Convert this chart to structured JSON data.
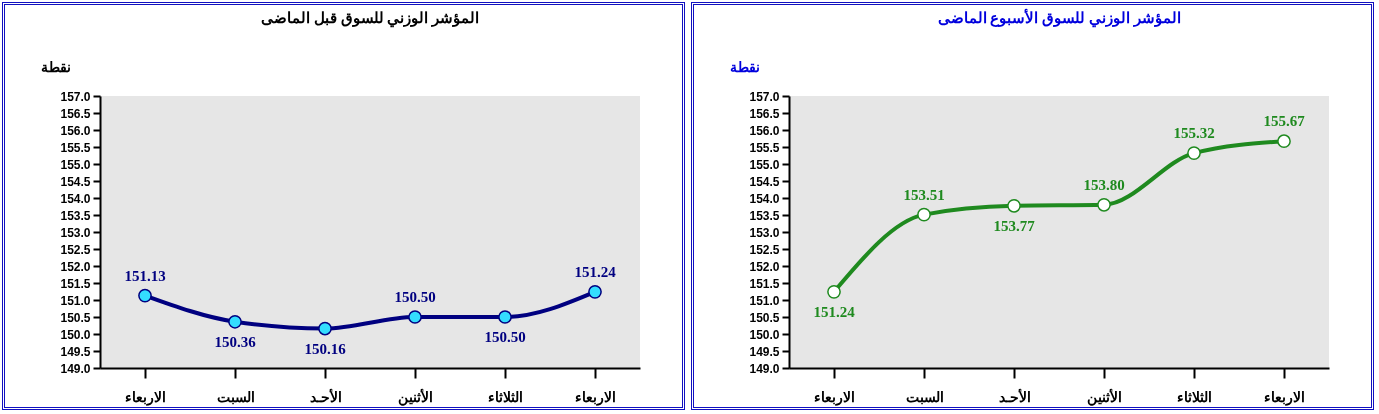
{
  "chart_data": [
    {
      "type": "line",
      "title": "المؤشر الوزني للسوق  قبل الماضى",
      "ylabel": "نقطة",
      "categories": [
        "الاربعاء",
        "السبت",
        "الأحـد",
        "الأثنين",
        "الثلاثاء",
        "الاربعاء"
      ],
      "values": [
        151.13,
        150.36,
        150.16,
        150.5,
        150.5,
        151.24
      ],
      "value_labels": [
        "151.13",
        "150.36",
        "150.16",
        "150.50",
        "150.50",
        "151.24"
      ],
      "color": "#000080",
      "ylim": [
        149,
        157
      ],
      "yticks": [
        {
          "value": 149,
          "label": "149.0"
        },
        {
          "value": 149.5,
          "label": "149.5"
        },
        {
          "value": 150,
          "label": "150.0"
        },
        {
          "value": 150.5,
          "label": "150.5"
        },
        {
          "value": 151,
          "label": "151.0"
        },
        {
          "value": 151.5,
          "label": "151.5"
        },
        {
          "value": 152,
          "label": "152.0"
        },
        {
          "value": 152.5,
          "label": "152.5"
        },
        {
          "value": 153,
          "label": "153.0"
        },
        {
          "value": 153.5,
          "label": "153.5"
        },
        {
          "value": 154,
          "label": "154.0"
        },
        {
          "value": 154.5,
          "label": "154.5"
        },
        {
          "value": 155,
          "label": "155.0"
        },
        {
          "value": 155.5,
          "label": "155.5"
        },
        {
          "value": 156,
          "label": "156.0"
        },
        {
          "value": 156.5,
          "label": "156.5"
        },
        {
          "value": 157,
          "label": "157.0"
        }
      ],
      "grid": false,
      "legend": false,
      "marker": "circle",
      "line_style": "solid"
    },
    {
      "type": "line",
      "title": "المؤشر الوزني للسوق الأسبوع الماضى",
      "ylabel": "نقطة",
      "categories": [
        "الاربعاء",
        "السبت",
        "الأحـد",
        "الأثنين",
        "الثلاثاء",
        "الاربعاء"
      ],
      "values": [
        151.24,
        153.51,
        153.77,
        153.8,
        155.32,
        155.67
      ],
      "value_labels": [
        "151.24",
        "153.51",
        "153.77",
        "153.80",
        "155.32",
        "155.67"
      ],
      "color": "#1f8a1f",
      "ylim": [
        149,
        157
      ],
      "yticks": [
        {
          "value": 149,
          "label": "149.0"
        },
        {
          "value": 149.5,
          "label": "149.5"
        },
        {
          "value": 150,
          "label": "150.0"
        },
        {
          "value": 150.5,
          "label": "150.5"
        },
        {
          "value": 151,
          "label": "151.0"
        },
        {
          "value": 151.5,
          "label": "151.5"
        },
        {
          "value": 152,
          "label": "152.0"
        },
        {
          "value": 152.5,
          "label": "152.5"
        },
        {
          "value": 153,
          "label": "153.0"
        },
        {
          "value": 153.5,
          "label": "153.5"
        },
        {
          "value": 154,
          "label": "154.0"
        },
        {
          "value": 154.5,
          "label": "154.5"
        },
        {
          "value": 155,
          "label": "155.0"
        },
        {
          "value": 155.5,
          "label": "155.5"
        },
        {
          "value": 156,
          "label": "156.0"
        },
        {
          "value": 156.5,
          "label": "156.5"
        },
        {
          "value": 157,
          "label": "157.0"
        }
      ],
      "grid": false,
      "legend": false,
      "marker": "circle",
      "line_style": "solid"
    }
  ]
}
